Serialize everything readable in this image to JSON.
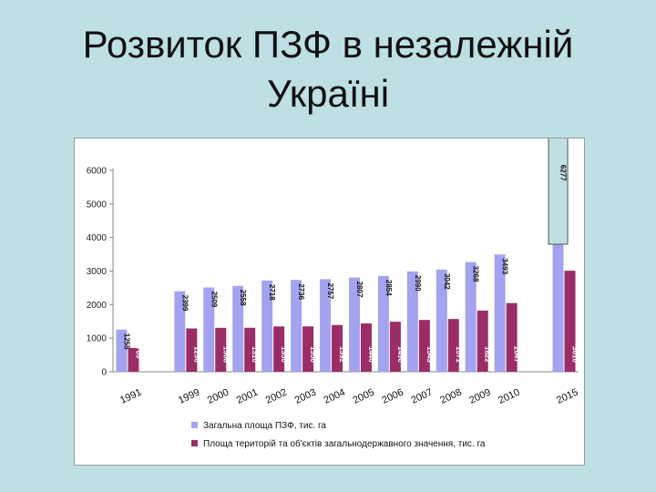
{
  "slide": {
    "title_line1": "Розвиток ПЗФ в незалежній",
    "title_line2": "Україні"
  },
  "chart_data": {
    "type": "bar",
    "categories": [
      "1991",
      "",
      "1999",
      "2000",
      "2001",
      "2002",
      "2003",
      "2004",
      "2005",
      "2006",
      "2007",
      "2008",
      "2009",
      "2010",
      "",
      "2015"
    ],
    "series": [
      {
        "name": "Загальна площа ПЗФ, тис. га",
        "color": "#a3a3f0",
        "values": [
          1255,
          null,
          2399,
          2509,
          2558,
          2718,
          2736,
          2757,
          2807,
          2854,
          2990,
          3042,
          3268,
          3493,
          null,
          6277
        ],
        "labels": [
          "1255",
          "",
          "2399",
          "2509",
          "2558",
          "2718",
          "2736",
          "2757",
          "2807",
          "2854",
          "2990",
          "3042",
          "3268",
          "3493",
          "",
          "6277"
        ]
      },
      {
        "name": "Площа територій та об'єктів загальнодержавного значення, тис. га",
        "color": "#9b2d66",
        "values": [
          709,
          null,
          1290,
          1308,
          1310,
          1350,
          1350,
          1392,
          1440,
          1490,
          1543,
          1571,
          1822,
          2047,
          null,
          3010
        ],
        "labels": [
          "709",
          "",
          "1290",
          "1308",
          "1310",
          "1350",
          "1350",
          "1392",
          "1440",
          "1490",
          "1543",
          "1571",
          "1822",
          "2047",
          "",
          "3010"
        ]
      }
    ],
    "ylim": [
      0,
      6000
    ],
    "yticks": [
      "0",
      "1000",
      "2000",
      "3000",
      "4000",
      "5000",
      "6000"
    ],
    "ytick_values": [
      0,
      1000,
      2000,
      3000,
      4000,
      5000,
      6000
    ],
    "grid": false,
    "legend_position": "bottom",
    "annotation": {
      "type": "overlay-rectangle",
      "over_category": "2015",
      "fill": "#bfe0e3",
      "stroke": "#555555"
    }
  }
}
